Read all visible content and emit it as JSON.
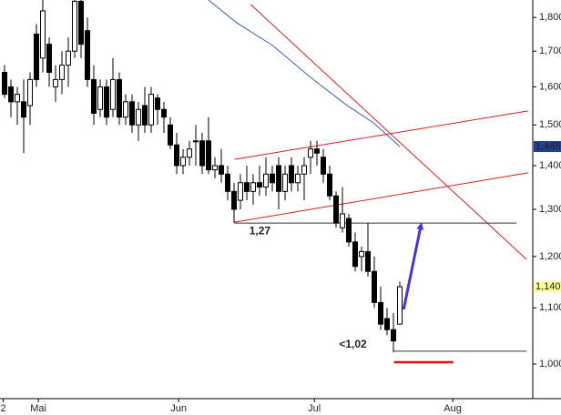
{
  "chart_data": {
    "type": "candlestick",
    "log_y": true,
    "xlim": [
      -0.714,
      82.857
    ],
    "ylim": [
      0.943,
      1.854
    ],
    "yticks": [
      {
        "value": 1.0,
        "label": "1,000"
      },
      {
        "value": 1.1,
        "label": "1,100"
      },
      {
        "value": 1.2,
        "label": "1,200"
      },
      {
        "value": 1.3,
        "label": "1,300"
      },
      {
        "value": 1.4,
        "label": "1,400"
      },
      {
        "value": 1.5,
        "label": "1,500"
      },
      {
        "value": 1.6,
        "label": "1,600"
      },
      {
        "value": 1.7,
        "label": "1,700"
      },
      {
        "value": 1.8,
        "label": "1,800"
      }
    ],
    "xticks": [
      {
        "value": -0.2,
        "label": "2"
      },
      {
        "value": 5.3,
        "label": "Mai"
      },
      {
        "value": 27.3,
        "label": "Jun"
      },
      {
        "value": 48.6,
        "label": "Jul"
      },
      {
        "value": 70.3,
        "label": "Aug"
      }
    ],
    "candles": {
      "up_color": "#ffffff",
      "down_color": "#000000",
      "open": [
        1.64,
        1.6,
        1.56,
        1.56,
        1.55,
        1.75,
        1.68,
        1.72,
        1.6,
        1.62,
        1.66,
        1.7,
        1.85,
        1.76,
        1.62,
        1.54,
        1.6,
        1.54,
        1.62,
        1.52,
        1.56,
        1.5,
        1.55,
        1.5,
        1.57,
        1.54,
        1.5,
        1.45,
        1.4,
        1.42,
        1.46,
        1.46,
        1.46,
        1.39,
        1.4,
        1.38,
        1.34,
        1.32,
        1.36,
        1.34,
        1.36,
        1.35,
        1.38,
        1.4,
        1.34,
        1.4,
        1.36,
        1.38,
        1.42,
        1.44,
        1.42,
        1.38,
        1.33,
        1.26,
        1.28,
        1.23,
        1.2,
        1.21,
        1.17,
        1.11,
        1.08,
        1.06,
        1.07
      ],
      "high": [
        1.66,
        1.62,
        1.6,
        1.62,
        1.64,
        1.78,
        1.86,
        1.74,
        1.66,
        1.7,
        1.74,
        1.86,
        1.86,
        1.8,
        1.66,
        1.62,
        1.62,
        1.68,
        1.64,
        1.58,
        1.58,
        1.56,
        1.6,
        1.6,
        1.58,
        1.56,
        1.52,
        1.48,
        1.44,
        1.46,
        1.5,
        1.48,
        1.52,
        1.42,
        1.44,
        1.4,
        1.36,
        1.38,
        1.4,
        1.38,
        1.4,
        1.42,
        1.4,
        1.42,
        1.4,
        1.42,
        1.4,
        1.42,
        1.46,
        1.46,
        1.44,
        1.4,
        1.34,
        1.35,
        1.29,
        1.25,
        1.22,
        1.27,
        1.2,
        1.14,
        1.1,
        1.09,
        1.15
      ],
      "low": [
        1.57,
        1.52,
        1.5,
        1.43,
        1.5,
        1.6,
        1.64,
        1.6,
        1.56,
        1.58,
        1.6,
        1.68,
        1.68,
        1.6,
        1.5,
        1.52,
        1.5,
        1.52,
        1.5,
        1.5,
        1.48,
        1.46,
        1.48,
        1.48,
        1.5,
        1.48,
        1.44,
        1.38,
        1.38,
        1.4,
        1.4,
        1.38,
        1.38,
        1.37,
        1.36,
        1.32,
        1.27,
        1.3,
        1.32,
        1.31,
        1.33,
        1.33,
        1.34,
        1.3,
        1.32,
        1.34,
        1.34,
        1.32,
        1.38,
        1.4,
        1.36,
        1.32,
        1.26,
        1.25,
        1.22,
        1.17,
        1.17,
        1.16,
        1.1,
        1.06,
        1.05,
        1.02,
        1.07
      ],
      "close": [
        1.58,
        1.56,
        1.58,
        1.52,
        1.62,
        1.62,
        1.82,
        1.64,
        1.62,
        1.66,
        1.7,
        1.85,
        1.72,
        1.62,
        1.53,
        1.6,
        1.52,
        1.62,
        1.52,
        1.56,
        1.5,
        1.54,
        1.5,
        1.58,
        1.54,
        1.52,
        1.45,
        1.4,
        1.42,
        1.44,
        1.46,
        1.4,
        1.39,
        1.4,
        1.38,
        1.34,
        1.3,
        1.36,
        1.34,
        1.36,
        1.35,
        1.38,
        1.36,
        1.34,
        1.38,
        1.36,
        1.38,
        1.4,
        1.44,
        1.43,
        1.38,
        1.33,
        1.27,
        1.29,
        1.23,
        1.18,
        1.21,
        1.17,
        1.11,
        1.07,
        1.06,
        1.04,
        1.14
      ]
    },
    "moving_average": {
      "color": "#3a5fb0",
      "x": [
        32,
        36.4,
        42,
        48,
        53.6,
        57.9,
        62
      ],
      "values": [
        1.854,
        1.784,
        1.717,
        1.626,
        1.552,
        1.505,
        1.446
      ]
    },
    "trendlines": [
      {
        "color": "#d42020",
        "x": [
          38.6,
          81.9
        ],
        "values": [
          1.84,
          1.194
        ]
      },
      {
        "color": "#d42020",
        "x": [
          36.1,
          82.1
        ],
        "values": [
          1.415,
          1.536
        ]
      },
      {
        "color": "#d42020",
        "x": [
          36.1,
          82.1
        ],
        "values": [
          1.272,
          1.383
        ]
      }
    ],
    "levels": [
      {
        "color": "#333333",
        "x": [
          36.1,
          80.3
        ],
        "value": 1.27,
        "label": "1,27",
        "label_color": "#2b4fb0"
      },
      {
        "color": "#333333",
        "x": [
          61.1,
          81.9
        ],
        "value": 1.022,
        "label": "<1,02",
        "label_color": "#e01010"
      },
      {
        "color": "#e01010",
        "x": [
          61.1,
          70.4
        ],
        "value": 1.003
      }
    ],
    "arrow": {
      "color": "#4a2fe0",
      "x": [
        62.6,
        65.3
      ],
      "values": [
        1.097,
        1.264
      ]
    },
    "price_markers": [
      {
        "value": 1.446,
        "label": "1,446",
        "color": "#1f3f8f",
        "text_color": "#ffffff"
      },
      {
        "value": 1.14,
        "label": "1,140",
        "color": "#ffff99",
        "text_color": "#000000"
      }
    ]
  }
}
